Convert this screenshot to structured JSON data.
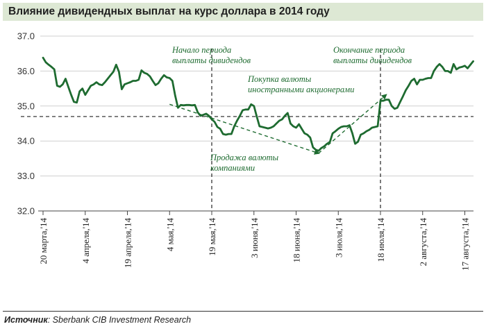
{
  "header": {
    "title": "Влияние дивидендных выплат на курс доллара в 2014 году"
  },
  "source": {
    "label": "Источник",
    "text": ": Sberbank CIB Investment Research"
  },
  "colors": {
    "series": "#1e6b30",
    "annotation": "#1e6b30",
    "title_bg": "#dde8d4",
    "gridline": "#cfcfcf"
  },
  "chart_data": {
    "type": "line",
    "title": "Влияние дивидендных выплат на курс доллара в 2014 году",
    "ylim": [
      32.0,
      37.0
    ],
    "y_ticks": [
      "32.0",
      "33.0",
      "34.0",
      "35.0",
      "36.0",
      "37.0"
    ],
    "grid": true,
    "x_tick_labels": [
      "20 марта,'14",
      "4 апреля,'14",
      "19 апреля,'14",
      "4 мая,'14",
      "19 мая,'14",
      "3 июня,'14",
      "18 июня,'14",
      "3 июля,'14",
      "18 июля,'14",
      "2 августа,'14",
      "17 августа,'14"
    ],
    "x_day_index_of_ticks": [
      0,
      15,
      30,
      45,
      60,
      75,
      90,
      105,
      120,
      135,
      150
    ],
    "series": [
      {
        "x": [
          0,
          1,
          2,
          3,
          4,
          5,
          6,
          7,
          8,
          9,
          10,
          11,
          12,
          13,
          14,
          15,
          16,
          17,
          18,
          19,
          20,
          21,
          22,
          23,
          24,
          25,
          26,
          27,
          28,
          29,
          30,
          31,
          32,
          33,
          34,
          35,
          36,
          37,
          38,
          39,
          40,
          41,
          42,
          43,
          44,
          45,
          46,
          47,
          48,
          49,
          50,
          51,
          52,
          53,
          54,
          55,
          56,
          57,
          58,
          59,
          60,
          61,
          62,
          63,
          64,
          65,
          66,
          67,
          68,
          69,
          70,
          71,
          72,
          73,
          74,
          75,
          76,
          77,
          78,
          79,
          80,
          81,
          82,
          83,
          84,
          85,
          86,
          87,
          88,
          89,
          90,
          91,
          92,
          93,
          94,
          95,
          96,
          97,
          98,
          99,
          100,
          101,
          102,
          103,
          104,
          105,
          106,
          107,
          108,
          109,
          110,
          111,
          112,
          113,
          114,
          115,
          116,
          117,
          118,
          119,
          120,
          121,
          122,
          123,
          124,
          125,
          126,
          127,
          128,
          129,
          130,
          131,
          132,
          133,
          134,
          135,
          136,
          137,
          138,
          139,
          140,
          141,
          142,
          143,
          144,
          145,
          146,
          147,
          148,
          149,
          150,
          151,
          152,
          153
        ],
        "values": [
          36.38,
          36.25,
          36.18,
          36.12,
          36.05,
          35.58,
          35.55,
          35.62,
          35.78,
          35.55,
          35.32,
          35.12,
          35.1,
          35.42,
          35.5,
          35.32,
          35.45,
          35.58,
          35.62,
          35.68,
          35.62,
          35.6,
          35.68,
          35.78,
          35.88,
          35.98,
          36.18,
          35.98,
          35.48,
          35.62,
          35.65,
          35.68,
          35.72,
          35.72,
          35.75,
          36.02,
          35.95,
          35.92,
          35.85,
          35.72,
          35.6,
          35.65,
          35.78,
          35.88,
          35.82,
          35.8,
          35.72,
          35.3,
          34.95,
          35.03,
          35.02,
          35.03,
          35.03,
          35.02,
          35.03,
          34.82,
          34.72,
          34.75,
          34.78,
          34.72,
          34.62,
          34.55,
          34.4,
          34.35,
          34.2,
          34.18,
          34.2,
          34.2,
          34.42,
          34.58,
          34.72,
          34.88,
          34.9,
          34.9,
          35.05,
          35.0,
          34.7,
          34.42,
          34.4,
          34.38,
          34.36,
          34.38,
          34.42,
          34.5,
          34.58,
          34.62,
          34.72,
          34.8,
          34.5,
          34.42,
          34.38,
          34.48,
          34.35,
          34.22,
          34.18,
          34.1,
          33.82,
          33.75,
          33.72,
          33.8,
          33.85,
          33.92,
          33.97,
          34.22,
          34.28,
          34.35,
          34.4,
          34.42,
          34.42,
          34.45,
          34.22,
          33.92,
          33.98,
          34.18,
          34.22,
          34.28,
          34.32,
          34.38,
          34.4,
          34.42,
          35.15,
          35.15,
          35.18,
          35.18,
          35.0,
          34.92,
          34.95,
          35.12,
          35.28,
          35.45,
          35.58,
          35.72,
          35.78,
          35.62,
          35.75,
          35.75,
          35.78,
          35.8,
          35.8,
          36.0,
          36.12,
          36.2,
          36.12,
          36.0,
          36.0,
          35.95,
          36.2,
          36.05,
          36.1,
          36.12,
          36.15,
          36.08,
          36.18,
          36.28
        ]
      }
    ],
    "reference_lines": {
      "horizontal_dashed_y": 34.7,
      "vertical_dashed_day_index": [
        60,
        120
      ]
    },
    "annotations": [
      {
        "lines": [
          "Начало периода",
          "выплаты дивидендов"
        ]
      },
      {
        "lines": [
          "Покупка валюты",
          "иностранными акционерами"
        ]
      },
      {
        "lines": [
          "Окончание периода",
          "выплаты дивидендов"
        ]
      },
      {
        "lines": [
          "Продажа валюты",
          "компаниями"
        ]
      }
    ],
    "trend_arrows": [
      {
        "from": [
          45,
          35.05
        ],
        "to": [
          98,
          33.65
        ]
      },
      {
        "from": [
          98,
          33.65
        ],
        "to": [
          122,
          35.32
        ]
      }
    ]
  }
}
